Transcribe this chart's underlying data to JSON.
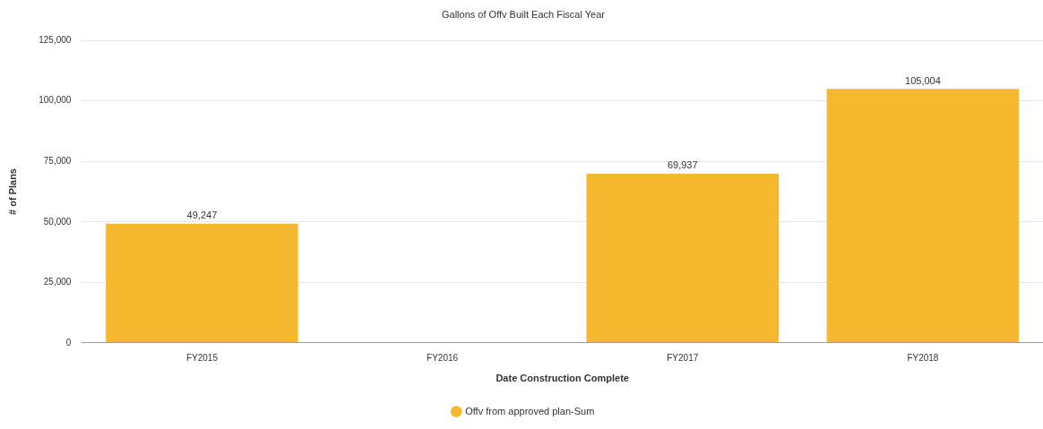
{
  "chart_data": {
    "type": "bar",
    "title": "Gallons of Offv Built Each Fiscal Year",
    "xlabel": "Date Construction Complete",
    "ylabel": "# of Plans",
    "categories": [
      "FY2015",
      "FY2016",
      "FY2017",
      "FY2018"
    ],
    "series": [
      {
        "name": "Offv from approved plan-Sum",
        "color": "#f5b82e",
        "values": [
          49247,
          null,
          69937,
          105004
        ],
        "value_labels": [
          "49,247",
          null,
          "69,937",
          "105,004"
        ]
      }
    ],
    "ylim": [
      0,
      125000
    ],
    "yticks": [
      {
        "value": 0,
        "label": "0"
      },
      {
        "value": 25000,
        "label": "25,000"
      },
      {
        "value": 50000,
        "label": "50,000"
      },
      {
        "value": 75000,
        "label": "75,000"
      },
      {
        "value": 100000,
        "label": "100,000"
      },
      {
        "value": 125000,
        "label": "125,000"
      }
    ],
    "grid": "y",
    "legend": "bottom"
  }
}
